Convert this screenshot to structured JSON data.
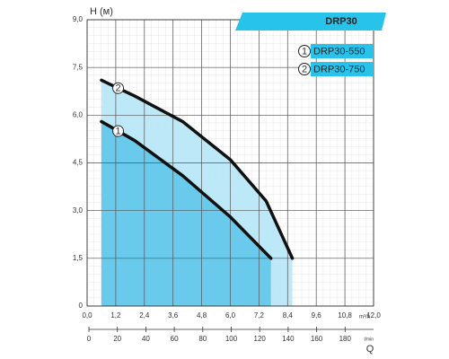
{
  "chart_data": {
    "type": "line",
    "title": "DRP30",
    "y_label": "H (м)",
    "x_label": "Q",
    "x_unit": "m³/h",
    "x2_unit": "l/min",
    "xlim": [
      0,
      12
    ],
    "xticks": [
      {
        "value": 0,
        "label": "0,0"
      },
      {
        "value": 1.2,
        "label": "1,2"
      },
      {
        "value": 2.4,
        "label": "2,4"
      },
      {
        "value": 3.6,
        "label": "3,6"
      },
      {
        "value": 4.8,
        "label": "4,8"
      },
      {
        "value": 6,
        "label": "6,0"
      },
      {
        "value": 7.2,
        "label": "7,2"
      },
      {
        "value": 8.4,
        "label": "8,4"
      },
      {
        "value": 9.6,
        "label": "9,6"
      },
      {
        "value": 10.8,
        "label": "10,8"
      },
      {
        "value": 12,
        "label": "12,0"
      }
    ],
    "ylim": [
      0,
      9
    ],
    "yticks": [
      0,
      {
        "value": 1.5,
        "label": "1,5"
      },
      {
        "value": 3,
        "label": "3,0"
      },
      {
        "value": 4.5,
        "label": "4,5"
      },
      {
        "value": 6,
        "label": "6,0"
      },
      {
        "value": 7.5,
        "label": "7,5"
      },
      {
        "value": 9,
        "label": "9,0"
      }
    ],
    "x2lim": [
      0,
      200
    ],
    "x2ticks": [
      0,
      20,
      40,
      60,
      80,
      100,
      120,
      140,
      160,
      180
    ],
    "grid": true,
    "series": [
      {
        "name": "DRP30-550",
        "marker_label": "1",
        "color": "#111111",
        "fill": "#5fc6ea",
        "x": [
          0.6,
          2,
          4,
          6,
          7.7
        ],
        "values": [
          5.8,
          5.2,
          4.1,
          2.8,
          1.5
        ]
      },
      {
        "name": "DRP30-750",
        "marker_label": "2",
        "color": "#111111",
        "fill": "#b5e6f7",
        "x": [
          0.6,
          2,
          4,
          6,
          7.5,
          8.6
        ],
        "values": [
          7.1,
          6.6,
          5.8,
          4.6,
          3.3,
          1.5
        ]
      }
    ]
  }
}
